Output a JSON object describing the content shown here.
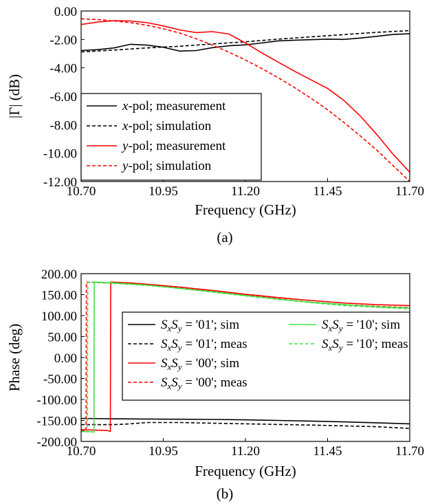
{
  "chart_data": [
    {
      "type": "line",
      "caption": "(a)",
      "xlabel": "Frequency (GHz)",
      "ylabel": "|Γ| (dB)",
      "xlim": [
        10.7,
        11.7
      ],
      "ylim": [
        -12,
        0
      ],
      "xticks": [
        "10.70",
        "10.95",
        "11.20",
        "11.45",
        "11.70"
      ],
      "yticks": [
        "0.00",
        "-2.00",
        "-4.00",
        "-6.00",
        "-8.00",
        "-10.00",
        "-12.00"
      ],
      "legend_position": "bottom-left",
      "series": [
        {
          "name": "x-pol; measurement",
          "name_parts": [
            "x",
            "-pol; measurement"
          ],
          "color": "#000000",
          "dash": false,
          "x": [
            10.7,
            10.75,
            10.8,
            10.85,
            10.9,
            10.95,
            11.0,
            11.05,
            11.1,
            11.15,
            11.2,
            11.25,
            11.3,
            11.35,
            11.4,
            11.45,
            11.5,
            11.55,
            11.6,
            11.65,
            11.7
          ],
          "y": [
            -2.78,
            -2.72,
            -2.6,
            -2.34,
            -2.4,
            -2.55,
            -2.82,
            -2.78,
            -2.58,
            -2.45,
            -2.38,
            -2.25,
            -2.1,
            -2.05,
            -2.02,
            -1.98,
            -2.0,
            -1.9,
            -1.78,
            -1.65,
            -1.6
          ]
        },
        {
          "name": "x-pol; simulation",
          "name_parts": [
            "x",
            "-pol; simulation"
          ],
          "color": "#000000",
          "dash": true,
          "x": [
            10.7,
            10.8,
            10.9,
            11.0,
            11.1,
            11.2,
            11.3,
            11.4,
            11.5,
            11.6,
            11.7
          ],
          "y": [
            -2.88,
            -2.75,
            -2.6,
            -2.48,
            -2.32,
            -2.17,
            -1.98,
            -1.82,
            -1.66,
            -1.5,
            -1.38
          ]
        },
        {
          "name": "y-pol; measurement",
          "name_parts": [
            "y",
            "-pol; measurement"
          ],
          "color": "#ff0000",
          "dash": false,
          "x": [
            10.7,
            10.75,
            10.8,
            10.85,
            10.9,
            10.95,
            11.0,
            11.05,
            11.1,
            11.15,
            11.2,
            11.25,
            11.3,
            11.35,
            11.4,
            11.45,
            11.5,
            11.55,
            11.6,
            11.65,
            11.7
          ],
          "y": [
            -0.95,
            -0.78,
            -0.68,
            -0.7,
            -0.82,
            -1.05,
            -1.33,
            -1.52,
            -1.45,
            -1.62,
            -2.25,
            -2.95,
            -3.6,
            -4.25,
            -4.85,
            -5.45,
            -6.3,
            -7.4,
            -8.7,
            -10.1,
            -11.35
          ]
        },
        {
          "name": "y-pol; simulation",
          "name_parts": [
            "y",
            "-pol; simulation"
          ],
          "color": "#ff0000",
          "dash": true,
          "x": [
            10.7,
            10.75,
            10.8,
            10.85,
            10.9,
            10.95,
            11.0,
            11.05,
            11.1,
            11.15,
            11.2,
            11.25,
            11.3,
            11.35,
            11.4,
            11.45,
            11.5,
            11.55,
            11.6,
            11.65,
            11.7
          ],
          "y": [
            -0.55,
            -0.6,
            -0.7,
            -0.82,
            -1.0,
            -1.25,
            -1.55,
            -1.95,
            -2.4,
            -2.9,
            -3.45,
            -4.05,
            -4.7,
            -5.4,
            -6.15,
            -6.95,
            -7.85,
            -8.8,
            -9.8,
            -10.9,
            -12.0
          ]
        }
      ]
    },
    {
      "type": "line",
      "caption": "(b)",
      "xlabel": "Frequency (GHz)",
      "ylabel": "Phase (deg)",
      "xlim": [
        10.7,
        11.7
      ],
      "ylim": [
        -200,
        200
      ],
      "xticks": [
        "10.70",
        "10.95",
        "11.20",
        "11.45",
        "11.70"
      ],
      "yticks": [
        "200.00",
        "150.00",
        "100.00",
        "50.00",
        "0.00",
        "-50.00",
        "-100.00",
        "-150.00",
        "-200.00"
      ],
      "legend_position": "center-right",
      "series": [
        {
          "name": "SxSy = '01'; sim",
          "name_parts": [
            "'01'; sim"
          ],
          "color": "#000000",
          "dash": false,
          "x": [
            10.7,
            10.8,
            10.9,
            11.0,
            11.1,
            11.2,
            11.3,
            11.4,
            11.5,
            11.6,
            11.7
          ],
          "y": [
            -145,
            -146,
            -146.5,
            -147,
            -147.5,
            -148.5,
            -150,
            -151.5,
            -153.5,
            -155.5,
            -158
          ]
        },
        {
          "name": "SxSy = '01'; meas",
          "name_parts": [
            "'01'; meas"
          ],
          "color": "#000000",
          "dash": true,
          "x": [
            10.7,
            10.8,
            10.85,
            10.9,
            11.0,
            11.1,
            11.2,
            11.3,
            11.4,
            11.5,
            11.6,
            11.7
          ],
          "y": [
            -160,
            -160,
            -158,
            -155,
            -155,
            -156.5,
            -158,
            -159.5,
            -161,
            -163,
            -165,
            -169
          ]
        },
        {
          "name": "SxSy = '00'; sim",
          "name_parts": [
            "'00'; sim"
          ],
          "color": "#ff0000",
          "dash": false,
          "x": [
            10.7,
            10.78,
            10.789,
            10.79,
            10.85,
            10.9,
            11.0,
            11.1,
            11.2,
            11.3,
            11.4,
            11.5,
            11.6,
            11.7
          ],
          "y": [
            -172,
            -174,
            -176,
            180,
            178,
            175,
            168,
            160,
            151,
            143,
            136,
            130,
            126,
            124
          ]
        },
        {
          "name": "SxSy = '00'; meas",
          "name_parts": [
            "'00'; meas"
          ],
          "color": "#ff0000",
          "dash": true,
          "x": [
            10.7,
            10.715,
            10.716,
            10.75,
            10.8,
            10.9,
            11.0,
            11.1,
            11.2,
            11.3,
            11.4,
            11.5,
            11.6,
            11.7
          ],
          "y": [
            -174,
            -175,
            180,
            179,
            177,
            173,
            167,
            158,
            149,
            140,
            132,
            126,
            122,
            119
          ]
        },
        {
          "name": "SxSy = '10'; sim",
          "name_parts": [
            "'10'; sim"
          ],
          "color": "#40e040",
          "dash": false,
          "x": [
            10.7,
            10.73,
            10.739,
            10.74,
            10.8,
            10.9,
            11.0,
            11.1,
            11.2,
            11.3,
            11.4,
            11.5,
            11.6,
            11.7
          ],
          "y": [
            -176,
            -177,
            -178,
            180,
            178,
            173,
            165,
            157,
            148,
            139,
            132,
            126,
            121,
            118
          ]
        },
        {
          "name": "SxSy = '10'; meas",
          "name_parts": [
            "'10'; meas"
          ],
          "color": "#40e040",
          "dash": true,
          "x": [
            10.7,
            10.719,
            10.72,
            10.75,
            10.8,
            10.9,
            11.0,
            11.1,
            11.2,
            11.3,
            11.4,
            11.5,
            11.6,
            11.7
          ],
          "y": [
            -176,
            -177,
            180,
            179,
            177,
            172,
            165,
            156,
            147,
            139,
            131,
            124,
            120,
            116
          ]
        }
      ]
    }
  ]
}
